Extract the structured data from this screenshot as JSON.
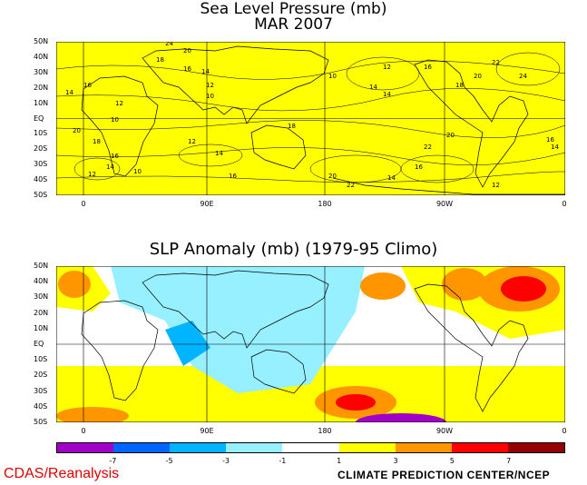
{
  "panel1": {
    "title": "Sea Level Pressure (mb)",
    "subtitle": "MAR 2007",
    "fill_color": "#ffff00",
    "contour_labels": [
      "24",
      "20",
      "18",
      "16",
      "14",
      "12",
      "10",
      "16",
      "14",
      "12",
      "10",
      "20",
      "18",
      "16",
      "14",
      "12",
      "10",
      "12",
      "14",
      "16",
      "18",
      "20",
      "22",
      "14",
      "16",
      "22",
      "20",
      "14",
      "12",
      "10",
      "14",
      "16",
      "18",
      "20",
      "22",
      "24",
      "16",
      "14",
      "12"
    ]
  },
  "panel2": {
    "title": "SLP Anomaly (mb) (1979-95 Climo)"
  },
  "lat_labels": [
    "50N",
    "40N",
    "30N",
    "20N",
    "10N",
    "EQ",
    "10S",
    "20S",
    "30S",
    "40S",
    "50S"
  ],
  "lon_labels": [
    "0",
    "90E",
    "180",
    "90W",
    "0"
  ],
  "colorbar": {
    "colors": [
      "#a000c8",
      "#0064ff",
      "#00b4ff",
      "#96f0ff",
      "#ffffff",
      "#ffff00",
      "#ff9600",
      "#ff0000",
      "#960000"
    ],
    "labels": [
      "-7",
      "-5",
      "-3",
      "-1",
      "1",
      "3",
      "5",
      "7"
    ]
  },
  "credit_left": "CDAS/Reanalysis",
  "credit_right": "CLIMATE PREDICTION CENTER/NCEP"
}
